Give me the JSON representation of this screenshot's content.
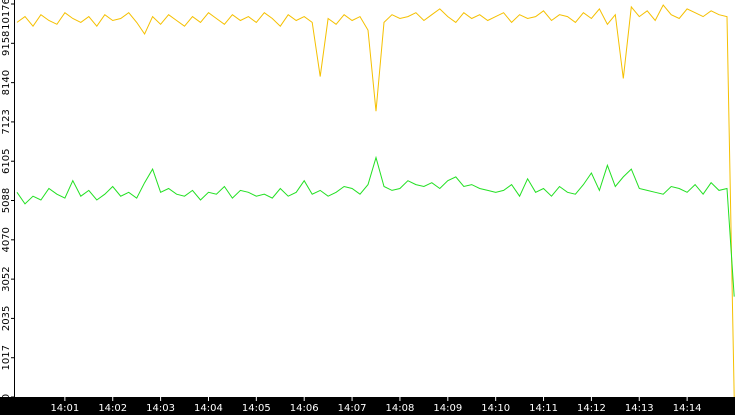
{
  "chart_data": {
    "type": "line",
    "x": [
      "14:00:00",
      "14:00:10",
      "14:00:20",
      "14:00:30",
      "14:00:40",
      "14:00:50",
      "14:01:00",
      "14:01:10",
      "14:01:20",
      "14:01:30",
      "14:01:40",
      "14:01:50",
      "14:02:00",
      "14:02:10",
      "14:02:20",
      "14:02:30",
      "14:02:40",
      "14:02:50",
      "14:03:00",
      "14:03:10",
      "14:03:20",
      "14:03:30",
      "14:03:40",
      "14:03:50",
      "14:04:00",
      "14:04:10",
      "14:04:20",
      "14:04:30",
      "14:04:40",
      "14:04:50",
      "14:05:00",
      "14:05:10",
      "14:05:20",
      "14:05:30",
      "14:05:40",
      "14:05:50",
      "14:06:00",
      "14:06:10",
      "14:06:20",
      "14:06:30",
      "14:06:40",
      "14:06:50",
      "14:07:00",
      "14:07:10",
      "14:07:20",
      "14:07:30",
      "14:07:40",
      "14:07:50",
      "14:08:00",
      "14:08:10",
      "14:08:20",
      "14:08:30",
      "14:08:40",
      "14:08:50",
      "14:09:00",
      "14:09:10",
      "14:09:20",
      "14:09:30",
      "14:09:40",
      "14:09:50",
      "14:10:00",
      "14:10:10",
      "14:10:20",
      "14:10:30",
      "14:10:40",
      "14:10:50",
      "14:11:00",
      "14:11:10",
      "14:11:20",
      "14:11:30",
      "14:11:40",
      "14:11:50",
      "14:12:00",
      "14:12:10",
      "14:12:20",
      "14:12:30",
      "14:12:40",
      "14:12:50",
      "14:13:00",
      "14:13:10",
      "14:13:20",
      "14:13:30",
      "14:13:40",
      "14:13:50",
      "14:14:00",
      "14:14:10",
      "14:14:20",
      "14:14:30",
      "14:14:40",
      "14:14:50",
      "14:14:59"
    ],
    "series": [
      {
        "color": "#f5c000",
        "values": [
          9700,
          9850,
          9600,
          9900,
          9750,
          9650,
          9950,
          9800,
          9700,
          9850,
          9600,
          9900,
          9750,
          9800,
          9950,
          9700,
          9400,
          9850,
          9650,
          9900,
          9750,
          9600,
          9850,
          9700,
          9950,
          9800,
          9650,
          9900,
          9750,
          9850,
          9700,
          9950,
          9800,
          9600,
          9900,
          9750,
          9850,
          9700,
          8300,
          9800,
          9650,
          9900,
          9750,
          9850,
          9500,
          7400,
          9700,
          9900,
          9800,
          9850,
          9950,
          9750,
          9900,
          10050,
          9850,
          9700,
          9950,
          9800,
          9900,
          9750,
          9850,
          9950,
          9700,
          9900,
          9800,
          9850,
          10000,
          9750,
          9900,
          9850,
          9700,
          9950,
          9800,
          10050,
          9650,
          9900,
          8250,
          10100,
          9850,
          10000,
          9750,
          10150,
          9900,
          9800,
          10050,
          9950,
          9850,
          10000,
          9900,
          9850,
          0
        ]
      },
      {
        "color": "#22e022",
        "values": [
          5300,
          5000,
          5200,
          5100,
          5400,
          5250,
          5150,
          5600,
          5200,
          5350,
          5100,
          5250,
          5450,
          5200,
          5300,
          5150,
          5550,
          5900,
          5300,
          5400,
          5250,
          5200,
          5350,
          5100,
          5300,
          5250,
          5450,
          5150,
          5350,
          5300,
          5200,
          5250,
          5150,
          5400,
          5200,
          5300,
          5600,
          5250,
          5350,
          5200,
          5300,
          5450,
          5400,
          5250,
          5500,
          6200,
          5450,
          5350,
          5400,
          5600,
          5500,
          5450,
          5550,
          5400,
          5600,
          5700,
          5450,
          5500,
          5400,
          5350,
          5300,
          5350,
          5500,
          5200,
          5650,
          5300,
          5400,
          5200,
          5450,
          5300,
          5250,
          5500,
          5800,
          5350,
          6000,
          5450,
          5700,
          5900,
          5400,
          5350,
          5300,
          5250,
          5450,
          5400,
          5300,
          5500,
          5250,
          5550,
          5350,
          5400,
          2600
        ]
      }
    ],
    "xlim": [
      "14:00",
      "14:15"
    ],
    "xticks": [
      "14:01",
      "14:02",
      "14:03",
      "14:04",
      "14:05",
      "14:06",
      "14:07",
      "14:08",
      "14:09",
      "14:10",
      "14:11",
      "14:12",
      "14:13",
      "14:14"
    ],
    "ylim": [
      0,
      10176
    ],
    "yticks": [
      0,
      1017,
      2035,
      3052,
      4070,
      5088,
      6105,
      7123,
      8140,
      9158,
      10176
    ]
  }
}
